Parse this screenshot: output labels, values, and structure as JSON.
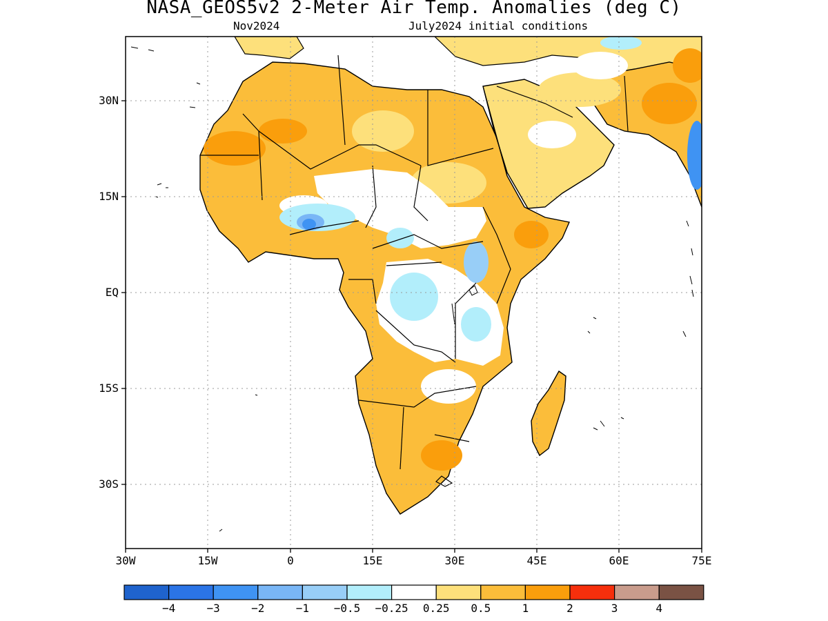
{
  "header": {
    "title": "NASA_GEOS5v2 2-Meter Air Temp. Anomalies (deg C)",
    "month": "Nov2024",
    "init": "July2024 initial conditions"
  },
  "map": {
    "lon_range": [
      -30,
      75
    ],
    "lat_range": [
      -40,
      40
    ],
    "y_ticks": [
      {
        "lat": 30,
        "label": "30N"
      },
      {
        "lat": 15,
        "label": "15N"
      },
      {
        "lat": 0,
        "label": "EQ"
      },
      {
        "lat": -15,
        "label": "15S"
      },
      {
        "lat": -30,
        "label": "30S"
      }
    ],
    "x_ticks": [
      {
        "lon": -30,
        "label": "30W"
      },
      {
        "lon": -15,
        "label": "15W"
      },
      {
        "lon": 0,
        "label": "0"
      },
      {
        "lon": 15,
        "label": "15E"
      },
      {
        "lon": 30,
        "label": "30E"
      },
      {
        "lon": 45,
        "label": "45E"
      },
      {
        "lon": 60,
        "label": "60E"
      },
      {
        "lon": 75,
        "label": "75E"
      }
    ],
    "grid": "dotted"
  },
  "colorbar": {
    "colors": [
      "#1f63cd",
      "#2b74e6",
      "#3f93f3",
      "#79b6f6",
      "#98cef7",
      "#b2eefb",
      "#ffffff",
      "#fde07b",
      "#fbbd3a",
      "#fa9e0c",
      "#f62f0c",
      "#c99c8c",
      "#7a5244"
    ],
    "labels": [
      "−4",
      "−3",
      "−2",
      "−1",
      "−0.5",
      "−0.25",
      "0.25",
      "0.5",
      "1",
      "2",
      "3",
      "4"
    ]
  },
  "colors": {
    "land_light": "#fde07b",
    "land_mid": "#fbbd3a",
    "land_strong": "#fa9e0c",
    "cool_light": "#b2eefb",
    "cool_mid": "#98cef7",
    "cool_strong": "#3f93f3"
  }
}
